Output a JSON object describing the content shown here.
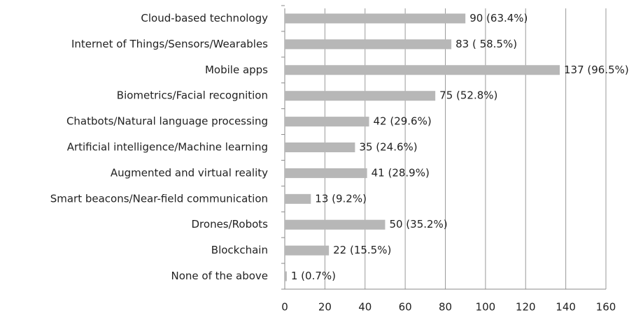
{
  "chart_data": {
    "type": "bar",
    "orientation": "horizontal",
    "categories": [
      "Cloud-based technology",
      "Internet of Things/Sensors/Wearables",
      "Mobile apps",
      "Biometrics/Facial recognition",
      "Chatbots/Natural language processing",
      "Artificial intelligence/Machine learning",
      "Augmented and virtual reality",
      "Smart beacons/Near-field communication",
      "Drones/Robots",
      "Blockchain",
      "None of the above"
    ],
    "values": [
      90,
      83,
      137,
      75,
      42,
      35,
      41,
      13,
      50,
      22,
      1
    ],
    "value_labels": [
      "90 (63.4%)",
      "83 ( 58.5%)",
      "137 (96.5%)",
      "75 (52.8%)",
      "42 (29.6%)",
      "35 (24.6%)",
      "41 (28.9%)",
      "13 (9.2%)",
      "50 (35.2%)",
      "22 (15.5%)",
      "1 (0.7%)"
    ],
    "color": "#b7b7b7",
    "xlim": [
      0,
      160
    ],
    "xticks": [
      0,
      20,
      40,
      60,
      80,
      100,
      120,
      140,
      160
    ],
    "grid": true
  }
}
